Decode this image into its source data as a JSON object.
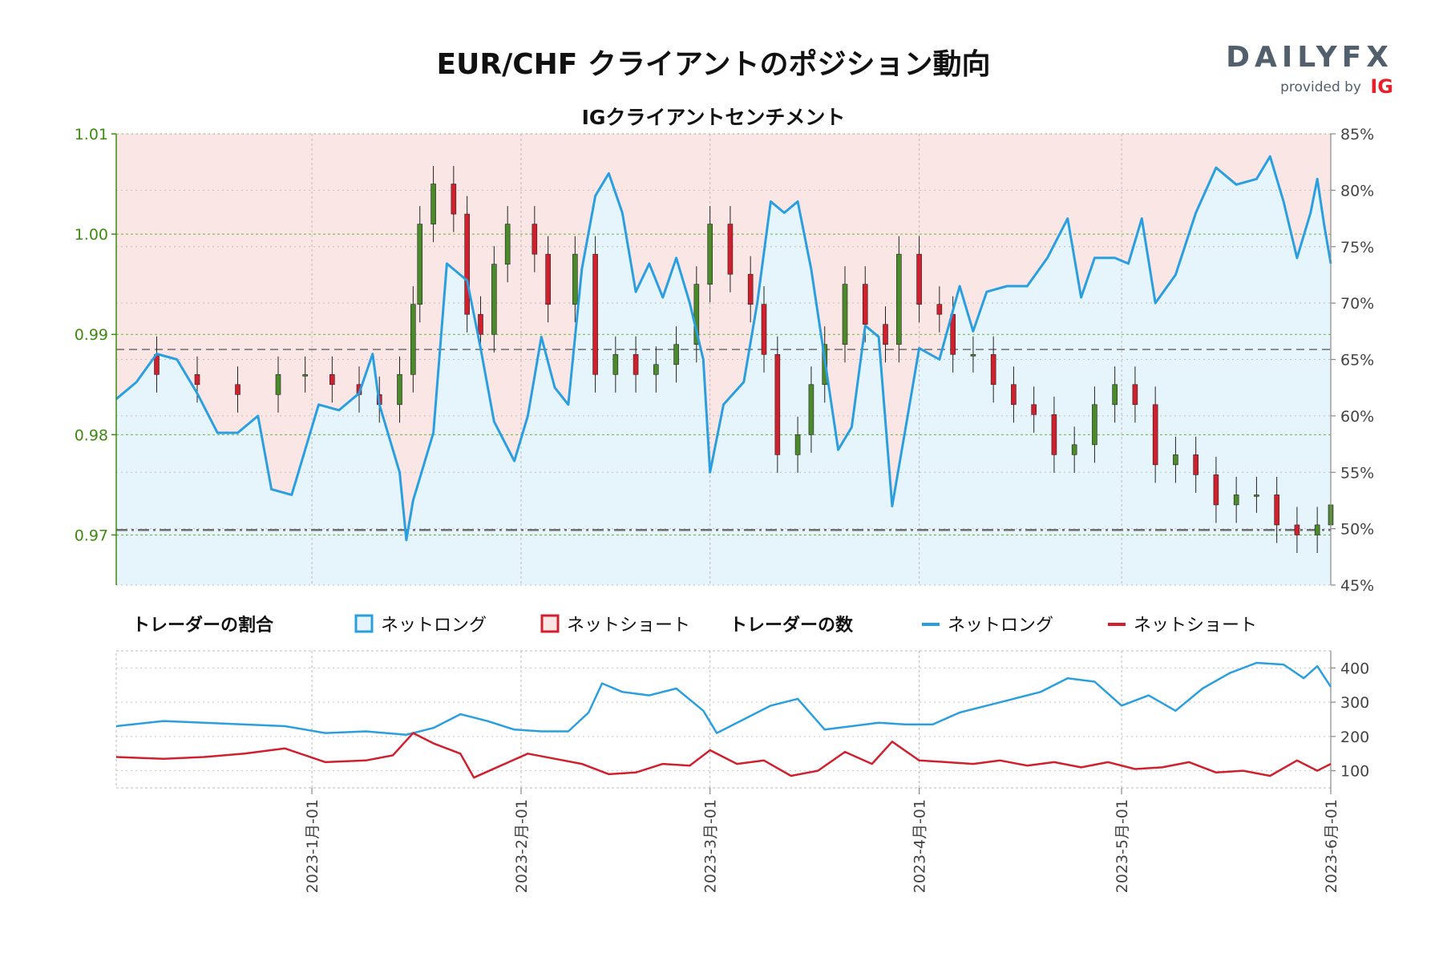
{
  "title": "EUR/CHF クライアントのポジション動向",
  "subtitle": "IGクライアントセンチメント",
  "logo": {
    "brand": "DAILYFX",
    "provided_by": "provided by",
    "provider": "IG"
  },
  "legend": {
    "ratio_title": "トレーダーの割合",
    "ratio_long": "ネットロング",
    "ratio_short": "ネットショート",
    "count_title": "トレーダーの数",
    "count_long": "ネットロング",
    "count_short": "ネットショート"
  },
  "colors": {
    "long": "#2a9fe0",
    "short": "#d0202e",
    "long_fill": "#e6f4fb",
    "short_fill": "#fbe6e6",
    "candle_up": "#4a8a2a",
    "candle_down": "#d0202e",
    "left_axis": "#3f8a10"
  },
  "chart_data": [
    {
      "type": "candlestick+area",
      "subtitle": "IGクライアントセンチメント",
      "x_range": [
        "2022-12-03",
        "2023-06-01"
      ],
      "x_ticks": [
        "2023-1月-01",
        "2023-2月-01",
        "2023-3月-01",
        "2023-4月-01",
        "2023-5月-01",
        "2023-6月-01"
      ],
      "price_axis": {
        "ylim": [
          0.965,
          1.01
        ],
        "ticks": [
          "0.97",
          "0.98",
          "0.99",
          "1.00",
          "1.01"
        ]
      },
      "sentiment_axis": {
        "ylim": [
          45,
          85
        ],
        "ticks": [
          "45%",
          "50%",
          "55%",
          "60%",
          "65%",
          "70%",
          "75%",
          "80%",
          "85%"
        ]
      },
      "reference_lines": [
        0.9885,
        0.9705
      ],
      "price_close": [
        [
          "2022-12-03",
          0.988
        ],
        [
          "2022-12-09",
          0.986
        ],
        [
          "2022-12-15",
          0.985
        ],
        [
          "2022-12-21",
          0.984
        ],
        [
          "2022-12-27",
          0.986
        ],
        [
          "2022-12-31",
          0.986
        ],
        [
          "2023-01-04",
          0.985
        ],
        [
          "2023-01-08",
          0.984
        ],
        [
          "2023-01-11",
          0.983
        ],
        [
          "2023-01-14",
          0.986
        ],
        [
          "2023-01-16",
          0.993
        ],
        [
          "2023-01-17",
          1.001
        ],
        [
          "2023-01-19",
          1.005
        ],
        [
          "2023-01-22",
          1.002
        ],
        [
          "2023-01-24",
          0.992
        ],
        [
          "2023-01-26",
          0.99
        ],
        [
          "2023-01-28",
          0.997
        ],
        [
          "2023-01-30",
          1.001
        ],
        [
          "2023-02-03",
          0.998
        ],
        [
          "2023-02-05",
          0.993
        ],
        [
          "2023-02-09",
          0.998
        ],
        [
          "2023-02-12",
          0.986
        ],
        [
          "2023-02-15",
          0.988
        ],
        [
          "2023-02-18",
          0.986
        ],
        [
          "2023-02-21",
          0.987
        ],
        [
          "2023-02-24",
          0.989
        ],
        [
          "2023-02-27",
          0.995
        ],
        [
          "2023-03-01",
          1.001
        ],
        [
          "2023-03-04",
          0.996
        ],
        [
          "2023-03-07",
          0.993
        ],
        [
          "2023-03-09",
          0.988
        ],
        [
          "2023-03-11",
          0.978
        ],
        [
          "2023-03-14",
          0.98
        ],
        [
          "2023-03-16",
          0.985
        ],
        [
          "2023-03-18",
          0.989
        ],
        [
          "2023-03-21",
          0.995
        ],
        [
          "2023-03-24",
          0.991
        ],
        [
          "2023-03-27",
          0.989
        ],
        [
          "2023-03-29",
          0.998
        ],
        [
          "2023-04-01",
          0.993
        ],
        [
          "2023-04-04",
          0.992
        ],
        [
          "2023-04-06",
          0.988
        ],
        [
          "2023-04-09",
          0.988
        ],
        [
          "2023-04-12",
          0.985
        ],
        [
          "2023-04-15",
          0.983
        ],
        [
          "2023-04-18",
          0.982
        ],
        [
          "2023-04-21",
          0.978
        ],
        [
          "2023-04-24",
          0.979
        ],
        [
          "2023-04-27",
          0.983
        ],
        [
          "2023-04-30",
          0.985
        ],
        [
          "2023-05-03",
          0.983
        ],
        [
          "2023-05-06",
          0.977
        ],
        [
          "2023-05-09",
          0.978
        ],
        [
          "2023-05-12",
          0.976
        ],
        [
          "2023-05-15",
          0.973
        ],
        [
          "2023-05-18",
          0.974
        ],
        [
          "2023-05-21",
          0.974
        ],
        [
          "2023-05-24",
          0.971
        ],
        [
          "2023-05-27",
          0.97
        ],
        [
          "2023-05-30",
          0.971
        ],
        [
          "2023-06-01",
          0.973
        ]
      ],
      "net_long_pct": [
        [
          "2022-12-03",
          61.5
        ],
        [
          "2022-12-06",
          63.0
        ],
        [
          "2022-12-09",
          65.5
        ],
        [
          "2022-12-12",
          65.0
        ],
        [
          "2022-12-15",
          62.0
        ],
        [
          "2022-12-18",
          58.5
        ],
        [
          "2022-12-21",
          58.5
        ],
        [
          "2022-12-24",
          60.0
        ],
        [
          "2022-12-26",
          53.5
        ],
        [
          "2022-12-29",
          53.0
        ],
        [
          "2023-01-02",
          61.0
        ],
        [
          "2023-01-05",
          60.5
        ],
        [
          "2023-01-08",
          62.0
        ],
        [
          "2023-01-10",
          65.5
        ],
        [
          "2023-01-11",
          61.0
        ],
        [
          "2023-01-14",
          55.0
        ],
        [
          "2023-01-15",
          49.0
        ],
        [
          "2023-01-16",
          52.5
        ],
        [
          "2023-01-19",
          58.5
        ],
        [
          "2023-01-21",
          73.5
        ],
        [
          "2023-01-24",
          72.0
        ],
        [
          "2023-01-26",
          66.0
        ],
        [
          "2023-01-28",
          59.5
        ],
        [
          "2023-01-31",
          56.0
        ],
        [
          "2023-02-02",
          60.0
        ],
        [
          "2023-02-04",
          67.0
        ],
        [
          "2023-02-06",
          62.5
        ],
        [
          "2023-02-08",
          61.0
        ],
        [
          "2023-02-10",
          73.0
        ],
        [
          "2023-02-12",
          79.5
        ],
        [
          "2023-02-14",
          81.5
        ],
        [
          "2023-02-16",
          78.0
        ],
        [
          "2023-02-18",
          71.0
        ],
        [
          "2023-02-20",
          73.5
        ],
        [
          "2023-02-22",
          70.5
        ],
        [
          "2023-02-24",
          74.0
        ],
        [
          "2023-02-26",
          70.0
        ],
        [
          "2023-02-28",
          65.0
        ],
        [
          "2023-03-01",
          55.0
        ],
        [
          "2023-03-03",
          61.0
        ],
        [
          "2023-03-06",
          63.0
        ],
        [
          "2023-03-08",
          70.0
        ],
        [
          "2023-03-10",
          79.0
        ],
        [
          "2023-03-12",
          78.0
        ],
        [
          "2023-03-14",
          79.0
        ],
        [
          "2023-03-16",
          73.0
        ],
        [
          "2023-03-18",
          65.0
        ],
        [
          "2023-03-20",
          57.0
        ],
        [
          "2023-03-22",
          59.0
        ],
        [
          "2023-03-24",
          68.0
        ],
        [
          "2023-03-26",
          67.0
        ],
        [
          "2023-03-28",
          52.0
        ],
        [
          "2023-03-30",
          59.0
        ],
        [
          "2023-04-01",
          66.0
        ],
        [
          "2023-04-04",
          65.0
        ],
        [
          "2023-04-07",
          71.5
        ],
        [
          "2023-04-09",
          67.5
        ],
        [
          "2023-04-11",
          71.0
        ],
        [
          "2023-04-14",
          71.5
        ],
        [
          "2023-04-17",
          71.5
        ],
        [
          "2023-04-20",
          74.0
        ],
        [
          "2023-04-23",
          77.5
        ],
        [
          "2023-04-25",
          70.5
        ],
        [
          "2023-04-27",
          74.0
        ],
        [
          "2023-04-30",
          74.0
        ],
        [
          "2023-05-02",
          73.5
        ],
        [
          "2023-05-04",
          77.5
        ],
        [
          "2023-05-06",
          70.0
        ],
        [
          "2023-05-09",
          72.5
        ],
        [
          "2023-05-12",
          78.0
        ],
        [
          "2023-05-15",
          82.0
        ],
        [
          "2023-05-18",
          80.5
        ],
        [
          "2023-05-21",
          81.0
        ],
        [
          "2023-05-23",
          83.0
        ],
        [
          "2023-05-25",
          79.0
        ],
        [
          "2023-05-27",
          74.0
        ],
        [
          "2023-05-29",
          78.0
        ],
        [
          "2023-05-30",
          81.0
        ],
        [
          "2023-05-31",
          77.0
        ],
        [
          "2023-06-01",
          73.5
        ]
      ],
      "series": [
        {
          "name": "ネットロング"
        },
        {
          "name": "ネットショート"
        }
      ]
    },
    {
      "type": "line",
      "subtitle": "トレーダーの数",
      "x_range": [
        "2022-12-03",
        "2023-06-01"
      ],
      "ylim": [
        50,
        450
      ],
      "y_ticks": [
        "100",
        "200",
        "300",
        "400"
      ],
      "series": [
        {
          "name": "ネットロング",
          "points": [
            [
              "2022-12-03",
              230
            ],
            [
              "2022-12-10",
              245
            ],
            [
              "2022-12-16",
              240
            ],
            [
              "2022-12-22",
              235
            ],
            [
              "2022-12-28",
              230
            ],
            [
              "2023-01-03",
              210
            ],
            [
              "2023-01-09",
              215
            ],
            [
              "2023-01-15",
              205
            ],
            [
              "2023-01-19",
              225
            ],
            [
              "2023-01-23",
              265
            ],
            [
              "2023-01-27",
              245
            ],
            [
              "2023-01-31",
              220
            ],
            [
              "2023-02-04",
              215
            ],
            [
              "2023-02-08",
              215
            ],
            [
              "2023-02-11",
              270
            ],
            [
              "2023-02-13",
              355
            ],
            [
              "2023-02-16",
              330
            ],
            [
              "2023-02-20",
              320
            ],
            [
              "2023-02-24",
              340
            ],
            [
              "2023-02-28",
              275
            ],
            [
              "2023-03-02",
              210
            ],
            [
              "2023-03-06",
              250
            ],
            [
              "2023-03-10",
              290
            ],
            [
              "2023-03-14",
              310
            ],
            [
              "2023-03-18",
              220
            ],
            [
              "2023-03-22",
              230
            ],
            [
              "2023-03-26",
              240
            ],
            [
              "2023-03-30",
              235
            ],
            [
              "2023-04-03",
              235
            ],
            [
              "2023-04-07",
              270
            ],
            [
              "2023-04-11",
              290
            ],
            [
              "2023-04-15",
              310
            ],
            [
              "2023-04-19",
              330
            ],
            [
              "2023-04-23",
              370
            ],
            [
              "2023-04-27",
              360
            ],
            [
              "2023-05-01",
              290
            ],
            [
              "2023-05-05",
              320
            ],
            [
              "2023-05-09",
              275
            ],
            [
              "2023-05-13",
              340
            ],
            [
              "2023-05-17",
              385
            ],
            [
              "2023-05-21",
              415
            ],
            [
              "2023-05-25",
              410
            ],
            [
              "2023-05-28",
              370
            ],
            [
              "2023-05-30",
              405
            ],
            [
              "2023-06-01",
              345
            ]
          ]
        },
        {
          "name": "ネットショート",
          "points": [
            [
              "2022-12-03",
              140
            ],
            [
              "2022-12-10",
              135
            ],
            [
              "2022-12-16",
              140
            ],
            [
              "2022-12-22",
              150
            ],
            [
              "2022-12-28",
              165
            ],
            [
              "2023-01-03",
              125
            ],
            [
              "2023-01-09",
              130
            ],
            [
              "2023-01-13",
              145
            ],
            [
              "2023-01-16",
              210
            ],
            [
              "2023-01-19",
              180
            ],
            [
              "2023-01-23",
              150
            ],
            [
              "2023-01-25",
              80
            ],
            [
              "2023-01-29",
              115
            ],
            [
              "2023-02-02",
              150
            ],
            [
              "2023-02-06",
              135
            ],
            [
              "2023-02-10",
              120
            ],
            [
              "2023-02-14",
              90
            ],
            [
              "2023-02-18",
              95
            ],
            [
              "2023-02-22",
              120
            ],
            [
              "2023-02-26",
              115
            ],
            [
              "2023-03-01",
              160
            ],
            [
              "2023-03-05",
              120
            ],
            [
              "2023-03-09",
              130
            ],
            [
              "2023-03-13",
              85
            ],
            [
              "2023-03-17",
              100
            ],
            [
              "2023-03-21",
              155
            ],
            [
              "2023-03-25",
              120
            ],
            [
              "2023-03-28",
              185
            ],
            [
              "2023-04-01",
              130
            ],
            [
              "2023-04-05",
              125
            ],
            [
              "2023-04-09",
              120
            ],
            [
              "2023-04-13",
              130
            ],
            [
              "2023-04-17",
              115
            ],
            [
              "2023-04-21",
              125
            ],
            [
              "2023-04-25",
              110
            ],
            [
              "2023-04-29",
              125
            ],
            [
              "2023-05-03",
              105
            ],
            [
              "2023-05-07",
              110
            ],
            [
              "2023-05-11",
              125
            ],
            [
              "2023-05-15",
              95
            ],
            [
              "2023-05-19",
              100
            ],
            [
              "2023-05-23",
              85
            ],
            [
              "2023-05-27",
              130
            ],
            [
              "2023-05-30",
              100
            ],
            [
              "2023-06-01",
              120
            ]
          ]
        }
      ]
    }
  ]
}
